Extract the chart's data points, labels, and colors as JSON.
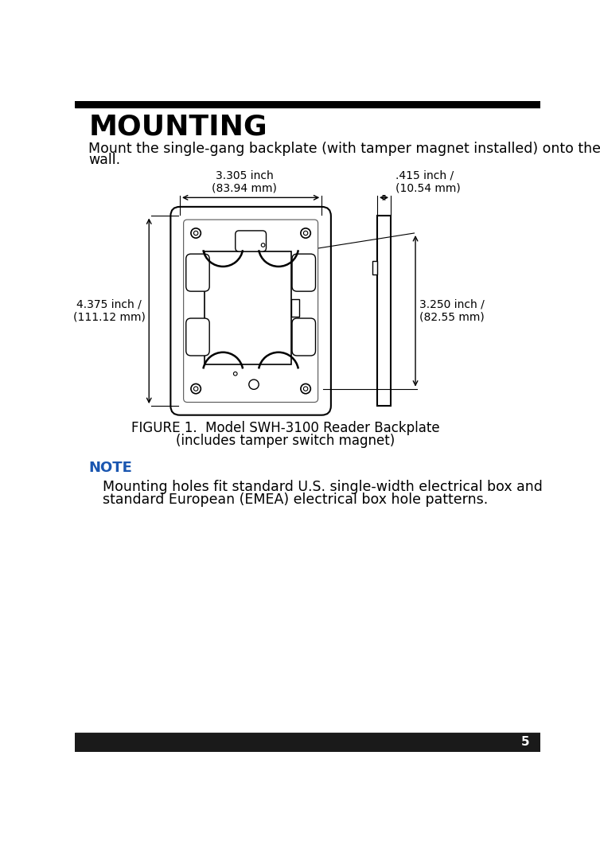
{
  "title": "MOUNTING",
  "page_number": "5",
  "intro_text_line1": "Mount the single-gang backplate (with tamper magnet installed) onto the",
  "intro_text_line2": "wall.",
  "figure_caption_line1": "FIGURE 1.  Model SWH-3100 Reader Backplate",
  "figure_caption_line2": "(includes tamper switch magnet)",
  "note_label": "NOTE",
  "note_text_line1": "Mounting holes fit standard U.S. single-width electrical box and",
  "note_text_line2": "standard European (EMEA) electrical box hole patterns.",
  "dim_top": "3.305 inch\n(83.94 mm)",
  "dim_right_top": ".415 inch /\n(10.54 mm)",
  "dim_left": "4.375 inch /\n(111.12 mm)",
  "dim_right": "3.250 inch /\n(82.55 mm)",
  "title_color": "#000000",
  "note_label_color": "#1a56b0",
  "body_color": "#000000",
  "bg_color": "#ffffff",
  "top_bar_color": "#000000",
  "bottom_bar_color": "#1a1a1a"
}
